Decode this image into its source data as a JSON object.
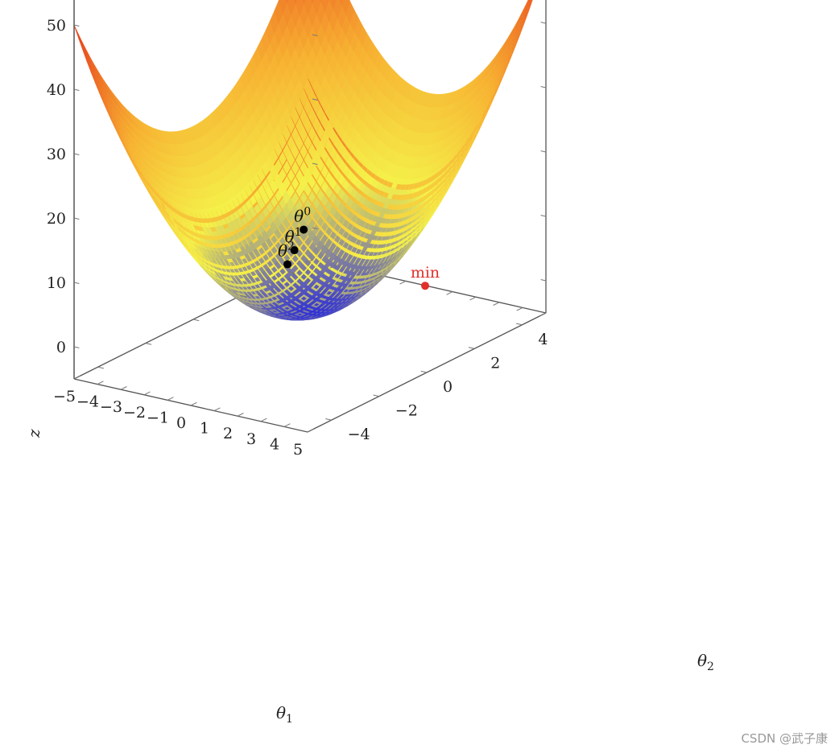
{
  "chart_data": {
    "type": "surface3d",
    "function": "z = θ1² + θ2²",
    "title": "",
    "xlabel": "θ",
    "xlabel_sub": "1",
    "ylabel": "θ",
    "ylabel_sub": "2",
    "zlabel": "z",
    "xlim": [
      -5,
      5
    ],
    "ylim": [
      -5,
      5
    ],
    "zlim": [
      -5,
      55
    ],
    "x_ticks": [
      "−5",
      "−4",
      "−3",
      "−2",
      "−1",
      "0",
      "1",
      "2",
      "3",
      "4",
      "5"
    ],
    "x_tick_values": [
      -5,
      -4,
      -3,
      -2,
      -1,
      0,
      1,
      2,
      3,
      4,
      5
    ],
    "y_ticks": [
      "−4",
      "−2",
      "0",
      "2",
      "4"
    ],
    "y_tick_values": [
      -4,
      -2,
      0,
      2,
      4
    ],
    "z_ticks": [
      "0",
      "10",
      "20",
      "30",
      "40",
      "50"
    ],
    "z_tick_values": [
      0,
      10,
      20,
      30,
      40,
      50
    ],
    "colormap": [
      "#3232d6",
      "#f5f24a",
      "#f7b232",
      "#e8401e"
    ],
    "points": [
      {
        "label": "θ",
        "sup": "0",
        "x": 3.2,
        "y": -3.4,
        "z": 22.0,
        "color": "#000000"
      },
      {
        "label": "θ",
        "sup": "1",
        "x": 2.7,
        "y": -3.3,
        "z": 18.2,
        "color": "#000000"
      },
      {
        "label": "θ",
        "sup": "2",
        "x": 2.3,
        "y": -3.2,
        "z": 15.5,
        "color": "#000000"
      }
    ],
    "min_point": {
      "label": "min",
      "x": 0,
      "y": 0,
      "z": 0,
      "color": "#e0302a"
    }
  },
  "watermark": "CSDN @武子康"
}
